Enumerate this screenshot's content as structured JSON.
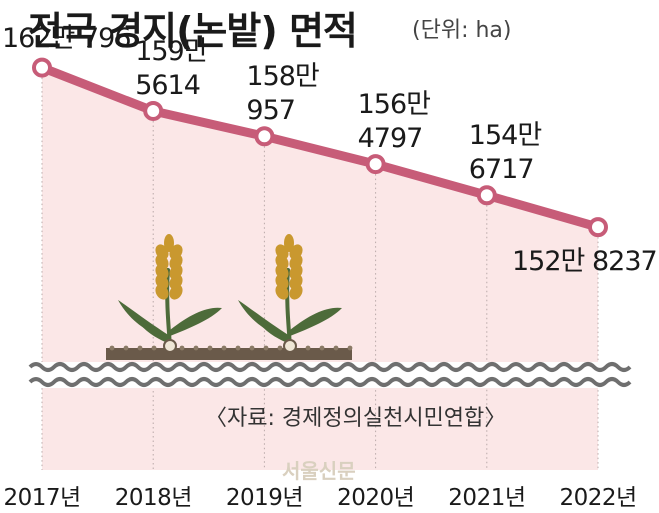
{
  "title": "전국 경지(논밭) 면적",
  "unit": "(단위: ha)",
  "source": "〈자료: 경제정의실천시민연합〉",
  "watermark": "서울신문",
  "colors": {
    "line": "#c75c78",
    "area": "#fbe7e7",
    "marker_fill": "#ffffff",
    "soil": "#6a5a4a",
    "wave": "#6f6f6f",
    "grain": "#c9982f",
    "leaf": "#4d6b3a"
  },
  "chart_data": {
    "type": "area",
    "categories": [
      "2017년",
      "2018년",
      "2019년",
      "2020년",
      "2021년",
      "2022년"
    ],
    "values": [
      1620796,
      1595614,
      1580957,
      1564797,
      1546717,
      1528237
    ],
    "data_labels": [
      [
        "162만 796"
      ],
      [
        "159만",
        "5614"
      ],
      [
        "158만",
        "957"
      ],
      [
        "156만",
        "4797"
      ],
      [
        "154만",
        "6717"
      ],
      [
        "152만 8237"
      ]
    ],
    "ylim": [
      1280000,
      1660000
    ],
    "grid": false,
    "legend": "none"
  }
}
